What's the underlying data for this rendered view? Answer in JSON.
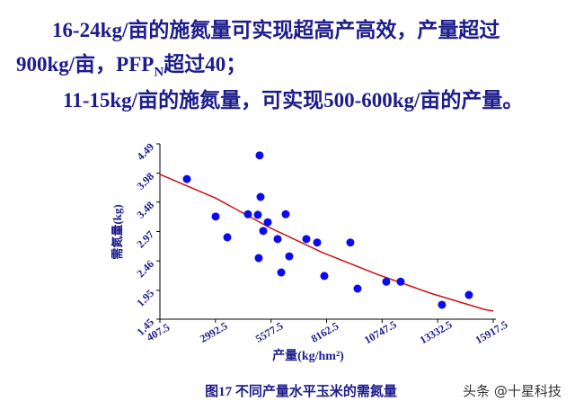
{
  "heading": {
    "line1": "16-24kg/亩的施氮量可实现超高产高效，产量超过",
    "line2": [
      "900kg/亩，PFP",
      "N",
      "超过40；"
    ],
    "line3": "11-15kg/亩的施氮量，可实现500-600kg/亩的产量。"
  },
  "chart_data": {
    "type": "scatter",
    "x": [
      1662,
      3000,
      3543,
      4504,
      5047,
      5089,
      4964,
      5424,
      5215,
      5005,
      6260,
      5884,
      6051,
      6427,
      7221,
      7723,
      8057,
      9269,
      9603,
      10940,
      11609,
      13532,
      14786
    ],
    "values": [
      3.88,
      3.23,
      2.87,
      3.27,
      4.29,
      3.57,
      3.26,
      3.13,
      2.98,
      2.51,
      3.27,
      2.84,
      2.26,
      2.54,
      2.84,
      2.78,
      2.2,
      2.78,
      1.98,
      2.1,
      2.1,
      1.7,
      1.87
    ],
    "color": "#0a0aee",
    "trend": {
      "x": [
        407.5,
        3000,
        5500,
        8000,
        10500,
        13000,
        15500,
        15917.5
      ],
      "values": [
        3.96,
        3.55,
        3.04,
        2.6,
        2.23,
        1.9,
        1.62,
        1.59
      ],
      "color": "#cc1111"
    },
    "xlim": [
      407.5,
      15917.5
    ],
    "xticks": [
      407.5,
      2992.5,
      5577.5,
      8162.5,
      10747.5,
      13332.5,
      15917.5
    ],
    "ylim": [
      1.45,
      4.49
    ],
    "yticks": [
      1.45,
      1.95,
      2.46,
      2.97,
      3.48,
      3.98,
      4.49
    ],
    "xlabel": "产量(kg/hm²)",
    "ylabel": "需氮量(kg)",
    "caption": "图17  不同产量水平玉米的需氮量"
  },
  "watermark": "头条 @十星科技"
}
